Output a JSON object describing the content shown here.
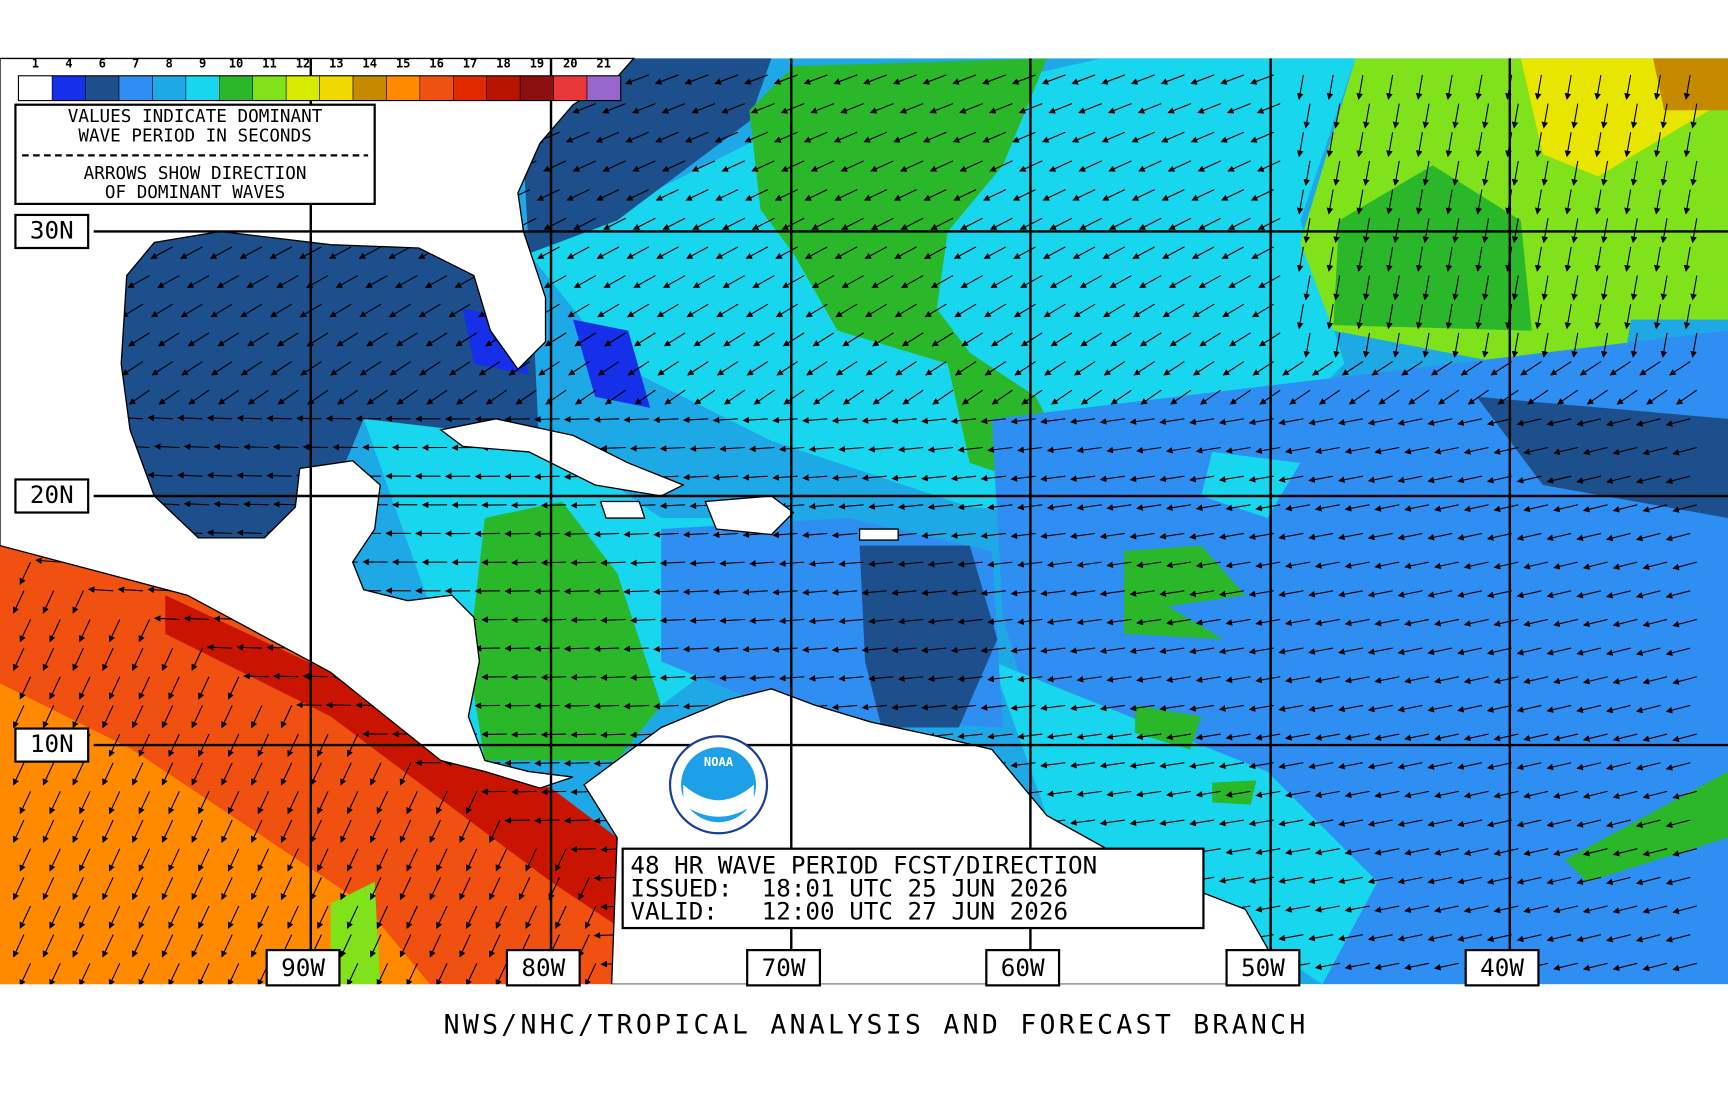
{
  "legend": {
    "periods": [
      1,
      4,
      6,
      7,
      8,
      9,
      10,
      11,
      12,
      13,
      14,
      15,
      16,
      17,
      18,
      19,
      20,
      21
    ],
    "colors": [
      "#ffffff",
      "#1530e8",
      "#1c4f8c",
      "#2e8ef2",
      "#1ea8e6",
      "#17d6ee",
      "#2ab82a",
      "#7fe21a",
      "#d8ec00",
      "#f0d800",
      "#c68a00",
      "#ff8a00",
      "#f05010",
      "#e02a00",
      "#b81400",
      "#8c1010",
      "#e83838",
      "#9966cc"
    ]
  },
  "legend_note": {
    "line1": "VALUES INDICATE DOMINANT",
    "line2": "WAVE PERIOD IN SECONDS",
    "line3": "ARROWS SHOW DIRECTION",
    "line4": "OF DOMINANT WAVES"
  },
  "latitudes": [
    "30N",
    "20N",
    "10N"
  ],
  "longitudes": [
    "90W",
    "80W",
    "70W",
    "60W",
    "50W",
    "40W"
  ],
  "info": {
    "title": "48 HR WAVE PERIOD FCST/DIRECTION",
    "issued": "ISSUED:  18:01 UTC 25 JUN 2026",
    "valid": "VALID:   12:00 UTC 27 JUN 2026"
  },
  "logo": "NOAA",
  "footer": "NWS/NHC/TROPICAL ANALYSIS AND FORECAST BRANCH"
}
